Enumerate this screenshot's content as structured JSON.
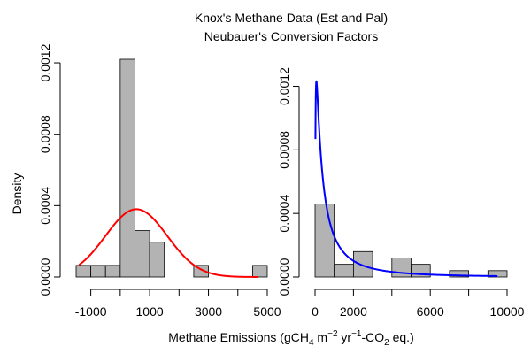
{
  "figure": {
    "title_line1": "Knox's Methane Data (Est and Pal)",
    "title_line2": "Neubauer's Conversion Factors",
    "ylabel": "Density",
    "xlabel_parts": {
      "pre": "Methane Emissions (gCH",
      "sub": "4",
      "mid1": " m",
      "sup1": "−2",
      "mid2": " yr",
      "sup2": "−1",
      "post": "-CO",
      "sub2": "2",
      "end": " eq.)"
    }
  },
  "chart_data": [
    {
      "type": "bar",
      "subtype": "histogram-with-density",
      "xlim": [
        -1500,
        5000
      ],
      "ylim": [
        0,
        0.00122
      ],
      "x_ticks": [
        -1000,
        1000,
        3000,
        5000
      ],
      "x_minor_ticks": [
        -1000,
        0,
        1000,
        2000,
        3000,
        4000,
        5000
      ],
      "x_tick_labels": [
        "-1000",
        "1000",
        "3000",
        "5000"
      ],
      "y_ticks": [
        0,
        0.0004,
        0.0008,
        0.0012
      ],
      "y_tick_labels": [
        "0.0000",
        "0.0004",
        "0.0008",
        "0.0012"
      ],
      "bar_color": "#b3b3b3",
      "bins": [
        {
          "x0": -1500,
          "x1": -1000,
          "density": 6.5e-05
        },
        {
          "x0": -1000,
          "x1": -500,
          "density": 6.5e-05
        },
        {
          "x0": -500,
          "x1": 0,
          "density": 6.5e-05
        },
        {
          "x0": 0,
          "x1": 500,
          "density": 0.00122
        },
        {
          "x0": 500,
          "x1": 1000,
          "density": 0.00026
        },
        {
          "x0": 1000,
          "x1": 1500,
          "density": 0.000195
        },
        {
          "x0": 1500,
          "x1": 2000,
          "density": 0
        },
        {
          "x0": 2000,
          "x1": 2500,
          "density": 0
        },
        {
          "x0": 2500,
          "x1": 3000,
          "density": 6.5e-05
        },
        {
          "x0": 3000,
          "x1": 3500,
          "density": 0
        },
        {
          "x0": 3500,
          "x1": 4000,
          "density": 0
        },
        {
          "x0": 4000,
          "x1": 4500,
          "density": 0
        },
        {
          "x0": 4500,
          "x1": 5000,
          "density": 6.5e-05
        }
      ],
      "curve": {
        "kind": "normal",
        "mean": 550,
        "sd": 1050,
        "x_range": [
          -1400,
          4700
        ],
        "color": "#ff0000"
      }
    },
    {
      "type": "bar",
      "subtype": "histogram-with-density",
      "xlim": [
        0,
        10000
      ],
      "ylim": [
        0,
        0.00137
      ],
      "x_ticks": [
        0,
        2000,
        6000,
        10000
      ],
      "x_minor_ticks": [
        0,
        2000,
        4000,
        6000,
        8000,
        10000
      ],
      "x_tick_labels": [
        "0",
        "2000",
        "6000",
        "10000"
      ],
      "y_ticks": [
        0,
        0.0004,
        0.0008,
        0.0012
      ],
      "y_tick_labels": [
        "0.0000",
        "0.0004",
        "0.0008",
        "0.0012"
      ],
      "bar_color": "#b3b3b3",
      "bins": [
        {
          "x0": 0,
          "x1": 1000,
          "density": 0.00046
        },
        {
          "x0": 1000,
          "x1": 2000,
          "density": 8e-05
        },
        {
          "x0": 2000,
          "x1": 3000,
          "density": 0.00016
        },
        {
          "x0": 3000,
          "x1": 4000,
          "density": 0
        },
        {
          "x0": 4000,
          "x1": 5000,
          "density": 0.00012
        },
        {
          "x0": 5000,
          "x1": 6000,
          "density": 8e-05
        },
        {
          "x0": 6000,
          "x1": 7000,
          "density": 0
        },
        {
          "x0": 7000,
          "x1": 8000,
          "density": 4e-05
        },
        {
          "x0": 8000,
          "x1": 9000,
          "density": 0
        },
        {
          "x0": 9000,
          "x1": 10000,
          "density": 4e-05
        }
      ],
      "curve": {
        "kind": "lognormal",
        "meanlog": 6.5,
        "sdlog": 1.5,
        "x_range": [
          20,
          9500
        ],
        "color": "#0000ff"
      }
    }
  ]
}
